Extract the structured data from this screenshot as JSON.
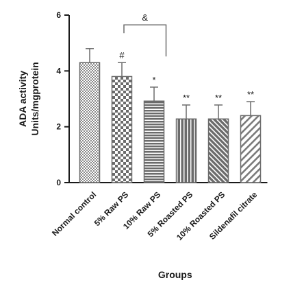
{
  "chart_data": {
    "type": "bar",
    "categories": [
      "Normal control",
      "5% Raw PS",
      "10% Raw PS",
      "5% Roasted PS",
      "10% Roasted PS",
      "Sildenafil citrate"
    ],
    "values": [
      4.3,
      3.8,
      2.92,
      2.28,
      2.28,
      2.4
    ],
    "errors": [
      0.5,
      0.5,
      0.5,
      0.5,
      0.5,
      0.5
    ],
    "annotations": [
      "",
      "#",
      "*",
      "**",
      "**",
      "**"
    ],
    "bracket": {
      "from": "5% Raw PS",
      "to": "10% Raw PS",
      "label": "&"
    },
    "patterns": [
      "checker-fine",
      "checker-large",
      "horizontal",
      "vertical",
      "diagonal-dense",
      "diagonal-wide"
    ],
    "ylabel_line1": "ADA activity",
    "ylabel_line2": "Units/mgprotein",
    "xlabel": "Groups",
    "ylim": [
      0,
      6
    ],
    "yticks": [
      "0",
      "2",
      "4",
      "6"
    ],
    "grid": false,
    "colors": {
      "bar_stroke": "#6b6b6b",
      "axis": "#1a1a1a",
      "fill": "#ffffff"
    }
  }
}
